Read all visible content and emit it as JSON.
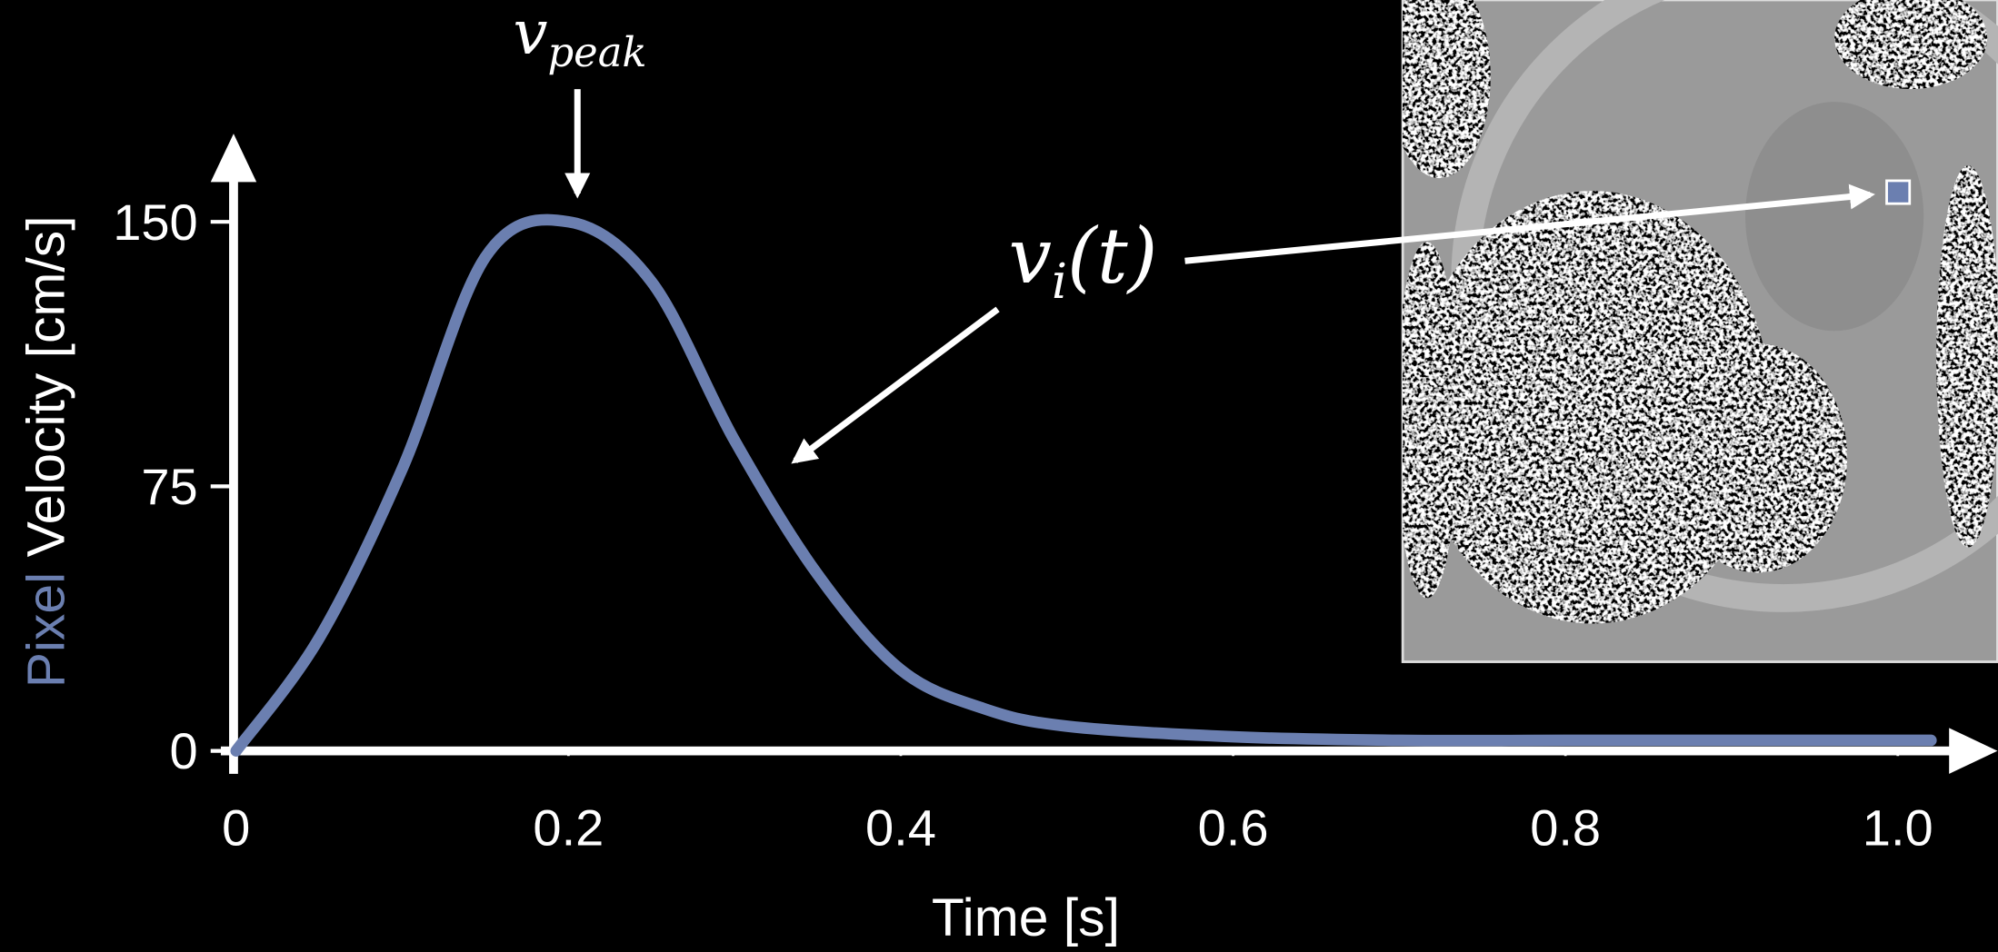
{
  "chart_data": {
    "type": "line",
    "xlabel": "Time [s]",
    "ylabel": {
      "highlight": "Pixel",
      "rest": "Velocity [cm/s]"
    },
    "peak_label": {
      "symbol": "v",
      "subscript": "peak"
    },
    "curve_label": {
      "symbol": "v",
      "subscript": "i",
      "argument": "(t)"
    },
    "x": [
      0,
      0.05,
      0.1,
      0.15,
      0.2,
      0.25,
      0.3,
      0.35,
      0.4,
      0.45,
      0.5,
      0.6,
      0.7,
      0.8,
      0.9,
      1.0,
      1.02
    ],
    "values": [
      0,
      32,
      80,
      140,
      150,
      133,
      88,
      50,
      23,
      12,
      7,
      4,
      3,
      3,
      3,
      3,
      3
    ],
    "color": "#6b7fb0",
    "xlim": [
      0,
      1.06
    ],
    "ylim": [
      0,
      175
    ],
    "xticks": [
      0,
      0.2,
      0.4,
      0.6,
      0.8,
      {
        "value": 1.0,
        "label": "1.0"
      }
    ],
    "yticks": [
      0,
      75,
      150
    ],
    "grid": false
  }
}
